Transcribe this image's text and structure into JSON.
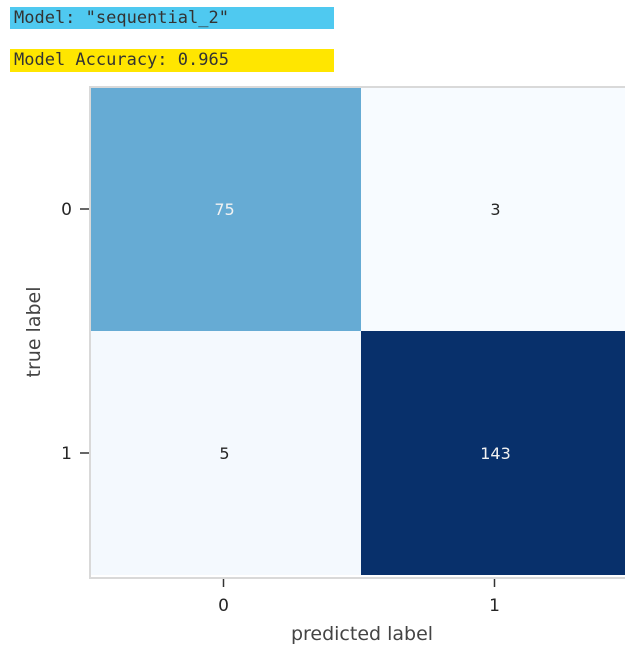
{
  "header": {
    "model_name": "Model: \"sequential_2\"",
    "model_accuracy": "Model Accuracy: 0.965"
  },
  "colors": {
    "model_name_highlight": "#4fc9f0",
    "model_accuracy_highlight": "#ffe600",
    "cmap_low": "#f7fbff",
    "cmap_high": "#08306b",
    "text_light": "#f2f2f2",
    "text_dark": "#262626",
    "frame": "#d9d9d9"
  },
  "chart_data": {
    "type": "heatmap",
    "colormap": "Blues",
    "xlabel": "predicted label",
    "ylabel": "true label",
    "x_categories": [
      "0",
      "1"
    ],
    "y_categories": [
      "0",
      "1"
    ],
    "values": [
      [
        75,
        3
      ],
      [
        5,
        143
      ]
    ],
    "colorbar": false,
    "grid": false
  }
}
